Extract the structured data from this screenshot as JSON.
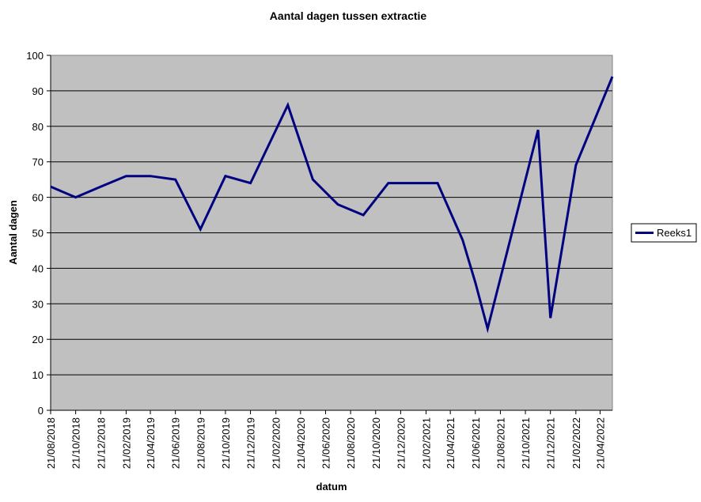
{
  "chart_data": {
    "type": "line",
    "title": "Aantal dagen tussen extractie",
    "xlabel": "datum",
    "ylabel": "Aantal dagen",
    "ylim": [
      0,
      100
    ],
    "yticks": [
      0,
      10,
      20,
      30,
      40,
      50,
      60,
      70,
      80,
      90,
      100
    ],
    "x_tick_labels": [
      "21/08/2018",
      "21/10/2018",
      "21/12/2018",
      "21/02/2019",
      "21/04/2019",
      "21/06/2019",
      "21/08/2019",
      "21/10/2019",
      "21/12/2019",
      "21/02/2020",
      "21/04/2020",
      "21/06/2020",
      "21/08/2020",
      "21/10/2020",
      "21/12/2020",
      "21/02/2021",
      "21/04/2021",
      "21/06/2021",
      "21/08/2021",
      "21/10/2021",
      "21/12/2021",
      "21/02/2022",
      "21/04/2022"
    ],
    "grid": true,
    "legend_position": "right",
    "plot_background": "#c0c0c0",
    "line_color": "#000080",
    "series": [
      {
        "name": "Reeks1",
        "points": [
          {
            "x": "2018-08-21",
            "y": 63
          },
          {
            "x": "2018-10-21",
            "y": 60
          },
          {
            "x": "2018-12-21",
            "y": 63
          },
          {
            "x": "2019-02-21",
            "y": 66
          },
          {
            "x": "2019-04-21",
            "y": 66
          },
          {
            "x": "2019-06-21",
            "y": 65
          },
          {
            "x": "2019-08-21",
            "y": 51
          },
          {
            "x": "2019-10-21",
            "y": 66
          },
          {
            "x": "2019-12-21",
            "y": 64
          },
          {
            "x": "2020-03-21",
            "y": 86
          },
          {
            "x": "2020-05-21",
            "y": 65
          },
          {
            "x": "2020-07-21",
            "y": 58
          },
          {
            "x": "2020-09-21",
            "y": 55
          },
          {
            "x": "2020-11-21",
            "y": 64
          },
          {
            "x": "2021-01-21",
            "y": 64
          },
          {
            "x": "2021-03-21",
            "y": 64
          },
          {
            "x": "2021-05-21",
            "y": 48
          },
          {
            "x": "2021-06-21",
            "y": 36
          },
          {
            "x": "2021-07-21",
            "y": 23
          },
          {
            "x": "2021-11-21",
            "y": 79
          },
          {
            "x": "2021-12-21",
            "y": 26
          },
          {
            "x": "2022-02-21",
            "y": 69
          },
          {
            "x": "2022-05-21",
            "y": 94
          }
        ]
      }
    ]
  }
}
